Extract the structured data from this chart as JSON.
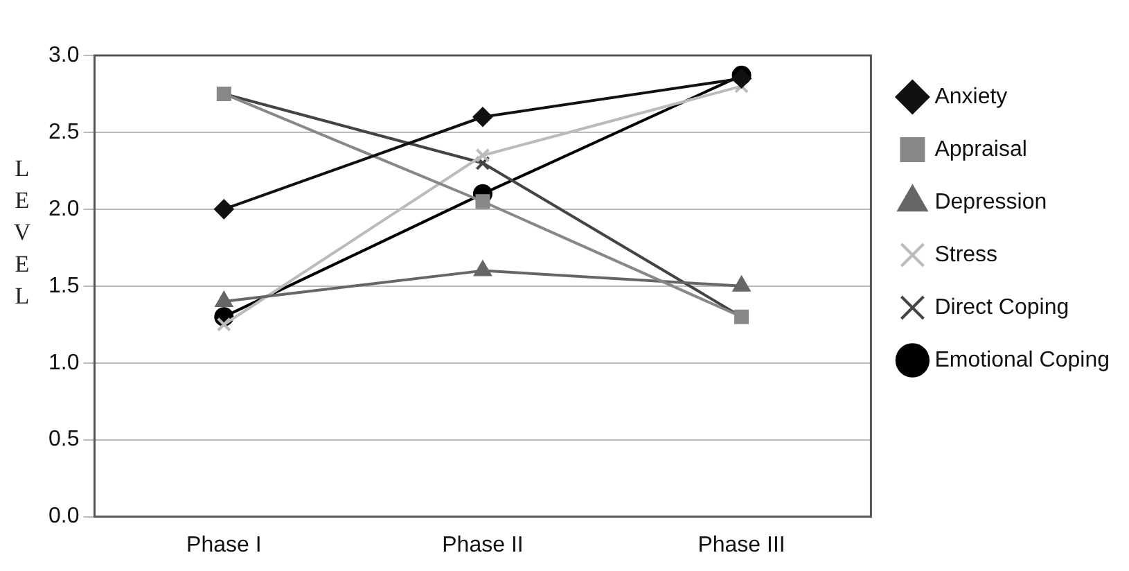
{
  "chart_data": {
    "type": "line",
    "ylabel": "LEVEL",
    "categories": [
      "Phase I",
      "Phase II",
      "Phase III"
    ],
    "series": [
      {
        "name": "Anxiety",
        "color": "#111111",
        "marker": "diamond",
        "values": [
          2.0,
          2.6,
          2.85
        ]
      },
      {
        "name": "Appraisal",
        "color": "#888888",
        "marker": "square",
        "values": [
          2.75,
          2.05,
          1.3
        ]
      },
      {
        "name": "Depression",
        "color": "#666666",
        "marker": "triangle",
        "values": [
          1.4,
          1.6,
          1.5
        ]
      },
      {
        "name": "Stress",
        "color": "#bbbbbb",
        "marker": "cross",
        "values": [
          1.25,
          2.35,
          2.8
        ]
      },
      {
        "name": "Direct Coping",
        "color": "#444444",
        "marker": "cross",
        "values": [
          2.75,
          2.3,
          1.3
        ]
      },
      {
        "name": "Emotional Coping",
        "color": "#000000",
        "marker": "circle",
        "values": [
          1.3,
          2.1,
          2.87
        ]
      }
    ],
    "ylim": [
      0,
      3
    ],
    "yticks": [
      {
        "value": 0,
        "label": "0.0"
      },
      {
        "value": 0.5,
        "label": "0.5"
      },
      {
        "value": 1,
        "label": "1.0"
      },
      {
        "value": 1.5,
        "label": "1.5"
      },
      {
        "value": 2,
        "label": "2.0"
      },
      {
        "value": 2.5,
        "label": "2.5"
      },
      {
        "value": 3,
        "label": "3.0"
      }
    ],
    "grid": "y",
    "legend": "right",
    "line_style": "solid"
  }
}
